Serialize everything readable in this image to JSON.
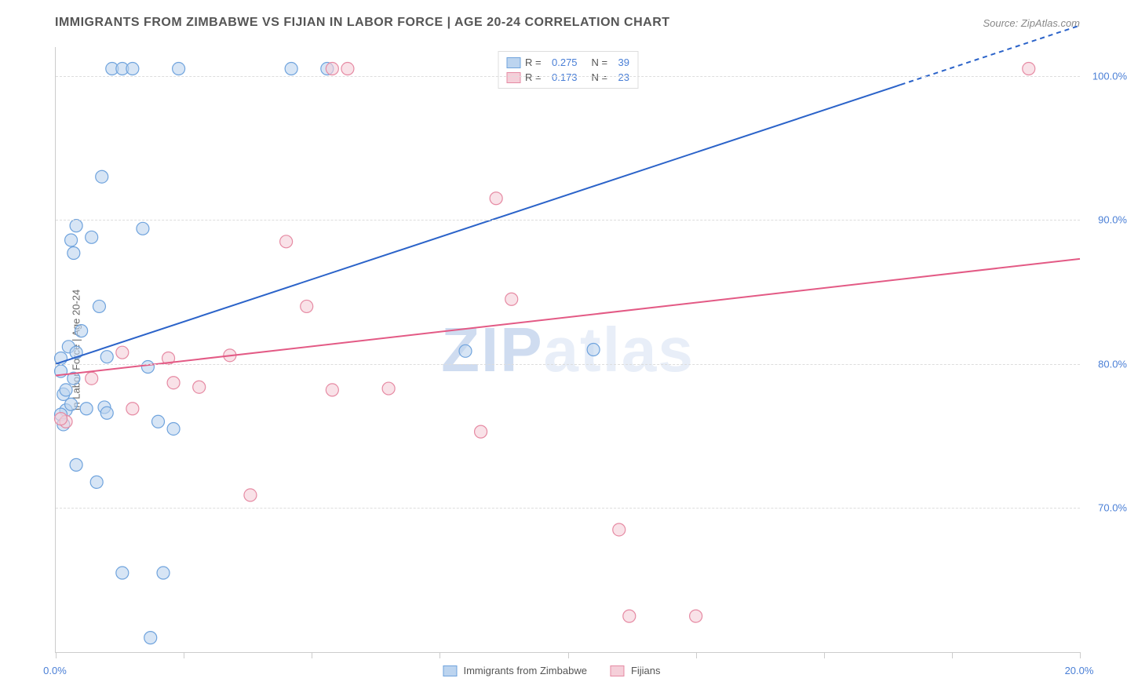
{
  "title": "IMMIGRANTS FROM ZIMBABWE VS FIJIAN IN LABOR FORCE | AGE 20-24 CORRELATION CHART",
  "source": "Source: ZipAtlas.com",
  "ylabel": "In Labor Force | Age 20-24",
  "watermark": {
    "left": "ZIP",
    "right": "atlas"
  },
  "chart": {
    "type": "scatter_with_regression",
    "xlim": [
      0,
      20
    ],
    "ylim": [
      60,
      102
    ],
    "xticks": [
      0,
      2.5,
      5,
      7.5,
      10,
      12.5,
      15,
      17.5,
      20
    ],
    "xticklabels_shown": {
      "0": "0.0%",
      "20": "20.0%"
    },
    "yticks": [
      70,
      80,
      90,
      100
    ],
    "yticklabels": [
      "70.0%",
      "80.0%",
      "90.0%",
      "100.0%"
    ],
    "grid_color": "#dddddd",
    "axis_color": "#cccccc",
    "background_color": "#ffffff",
    "marker_radius": 8,
    "marker_stroke_width": 1.2,
    "line_width": 2,
    "series": [
      {
        "name": "Immigrants from Zimbabwe",
        "fill_color": "#bcd4ef",
        "stroke_color": "#6fa3dd",
        "line_color": "#2b63c9",
        "R": 0.275,
        "N": 39,
        "points": [
          [
            0.1,
            80.4
          ],
          [
            0.1,
            79.5
          ],
          [
            0.15,
            77.9
          ],
          [
            0.2,
            78.2
          ],
          [
            0.2,
            76.8
          ],
          [
            0.25,
            81.2
          ],
          [
            0.3,
            88.6
          ],
          [
            0.3,
            77.2
          ],
          [
            0.35,
            87.7
          ],
          [
            0.35,
            79.0
          ],
          [
            0.4,
            89.6
          ],
          [
            0.4,
            80.8
          ],
          [
            0.4,
            73.0
          ],
          [
            0.5,
            82.3
          ],
          [
            0.6,
            76.9
          ],
          [
            0.7,
            88.8
          ],
          [
            0.8,
            71.8
          ],
          [
            0.85,
            84.0
          ],
          [
            0.9,
            93.0
          ],
          [
            0.95,
            77.0
          ],
          [
            1.0,
            80.5
          ],
          [
            1.0,
            76.6
          ],
          [
            1.1,
            100.5
          ],
          [
            1.3,
            100.5
          ],
          [
            1.3,
            65.5
          ],
          [
            1.5,
            100.5
          ],
          [
            1.7,
            89.4
          ],
          [
            1.8,
            79.8
          ],
          [
            1.85,
            61.0
          ],
          [
            2.0,
            76.0
          ],
          [
            2.1,
            65.5
          ],
          [
            2.3,
            75.5
          ],
          [
            2.4,
            100.5
          ],
          [
            4.6,
            100.5
          ],
          [
            5.3,
            100.5
          ],
          [
            8.0,
            80.9
          ],
          [
            10.5,
            81.0
          ],
          [
            0.1,
            76.5
          ],
          [
            0.15,
            75.8
          ]
        ],
        "regression": {
          "x1": 0,
          "y1": 80.0,
          "x2": 20,
          "y2": 103.5,
          "dash_after_x": 16.5
        }
      },
      {
        "name": "Fijians",
        "fill_color": "#f5cfd9",
        "stroke_color": "#e68aa3",
        "line_color": "#e35a85",
        "R": 0.173,
        "N": 23,
        "points": [
          [
            0.2,
            76.0
          ],
          [
            0.7,
            79.0
          ],
          [
            1.3,
            80.8
          ],
          [
            1.5,
            76.9
          ],
          [
            2.2,
            80.4
          ],
          [
            2.3,
            78.7
          ],
          [
            2.8,
            78.4
          ],
          [
            3.4,
            80.6
          ],
          [
            3.8,
            70.9
          ],
          [
            4.5,
            88.5
          ],
          [
            4.9,
            84.0
          ],
          [
            5.4,
            78.2
          ],
          [
            5.4,
            100.5
          ],
          [
            5.7,
            100.5
          ],
          [
            6.5,
            78.3
          ],
          [
            8.3,
            75.3
          ],
          [
            8.6,
            91.5
          ],
          [
            8.9,
            84.5
          ],
          [
            11.0,
            68.5
          ],
          [
            11.2,
            62.5
          ],
          [
            12.5,
            62.5
          ],
          [
            19.0,
            100.5
          ],
          [
            0.1,
            76.2
          ]
        ],
        "regression": {
          "x1": 0,
          "y1": 79.2,
          "x2": 20,
          "y2": 87.3
        }
      }
    ]
  },
  "legend_top": {
    "rows": [
      {
        "swatch_fill": "#bcd4ef",
        "swatch_stroke": "#6fa3dd",
        "R_label": "R =",
        "R": "0.275",
        "N_label": "N =",
        "N": "39"
      },
      {
        "swatch_fill": "#f5cfd9",
        "swatch_stroke": "#e68aa3",
        "R_label": "R =",
        "R": "0.173",
        "N_label": "N =",
        "N": "23"
      }
    ]
  },
  "legend_bottom": {
    "items": [
      {
        "swatch_fill": "#bcd4ef",
        "swatch_stroke": "#6fa3dd",
        "label": "Immigrants from Zimbabwe"
      },
      {
        "swatch_fill": "#f5cfd9",
        "swatch_stroke": "#e68aa3",
        "label": "Fijians"
      }
    ]
  }
}
